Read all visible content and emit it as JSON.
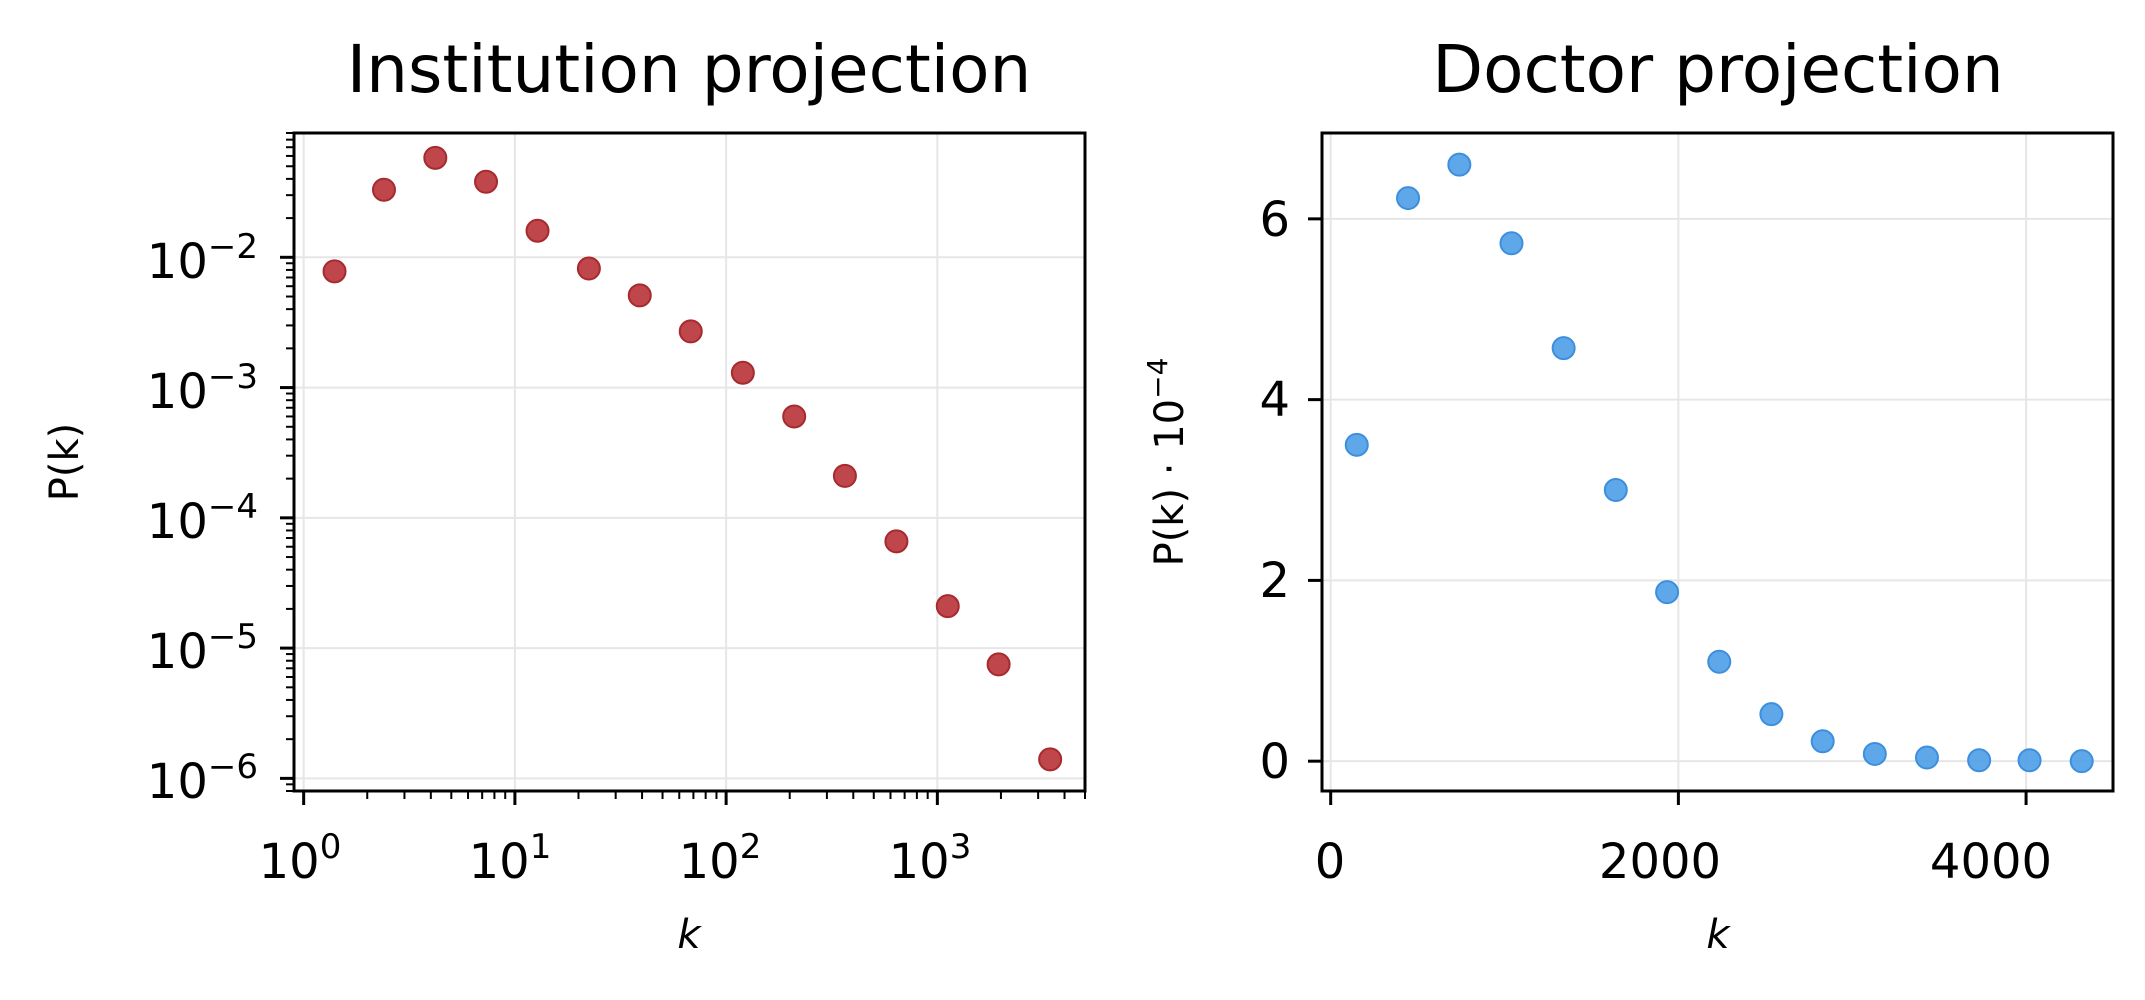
{
  "chart_data": [
    {
      "type": "scatter",
      "title": "Institution projection",
      "xlabel": "k",
      "ylabel": "P(k)",
      "xscale": "log",
      "yscale": "log",
      "xlim": [
        0.9,
        5000
      ],
      "ylim": [
        8e-07,
        0.09
      ],
      "grid": true,
      "color": "#b83236",
      "x_tick_labels": [
        {
          "base": "10",
          "exp": "0"
        },
        {
          "base": "10",
          "exp": "1"
        },
        {
          "base": "10",
          "exp": "2"
        },
        {
          "base": "10",
          "exp": "3"
        }
      ],
      "y_tick_labels": [
        {
          "base": "10",
          "exp": "−2"
        },
        {
          "base": "10",
          "exp": "−3"
        },
        {
          "base": "10",
          "exp": "−4"
        },
        {
          "base": "10",
          "exp": "−5"
        },
        {
          "base": "10",
          "exp": "−6"
        }
      ],
      "points": [
        {
          "x": 1.4,
          "y": 0.0078
        },
        {
          "x": 2.4,
          "y": 0.033
        },
        {
          "x": 4.2,
          "y": 0.058
        },
        {
          "x": 7.3,
          "y": 0.038
        },
        {
          "x": 12.8,
          "y": 0.016
        },
        {
          "x": 22.4,
          "y": 0.0082
        },
        {
          "x": 39,
          "y": 0.0051
        },
        {
          "x": 68,
          "y": 0.0027
        },
        {
          "x": 120,
          "y": 0.0013
        },
        {
          "x": 210,
          "y": 0.0006
        },
        {
          "x": 365,
          "y": 0.00021
        },
        {
          "x": 640,
          "y": 6.6e-05
        },
        {
          "x": 1120,
          "y": 2.1e-05
        },
        {
          "x": 1950,
          "y": 7.5e-06
        },
        {
          "x": 3420,
          "y": 1.4e-06
        }
      ]
    },
    {
      "type": "scatter",
      "title": "Doctor projection",
      "xlabel": "k",
      "ylabel": "P(k) · 10",
      "ylabel_exp": "−4",
      "xlim": [
        -50,
        4500
      ],
      "ylim": [
        -0.33,
        6.95
      ],
      "grid": true,
      "color": "#4d9ee8",
      "x_tick_labels": [
        "0",
        "2000",
        "4000"
      ],
      "y_tick_labels": [
        "0",
        "2",
        "4",
        "6"
      ],
      "points": [
        {
          "x": 150,
          "y": 3.5
        },
        {
          "x": 445,
          "y": 6.23
        },
        {
          "x": 740,
          "y": 6.6
        },
        {
          "x": 1040,
          "y": 5.73
        },
        {
          "x": 1340,
          "y": 4.57
        },
        {
          "x": 1640,
          "y": 3.0
        },
        {
          "x": 1935,
          "y": 1.87
        },
        {
          "x": 2235,
          "y": 1.1
        },
        {
          "x": 2535,
          "y": 0.52
        },
        {
          "x": 2830,
          "y": 0.22
        },
        {
          "x": 3130,
          "y": 0.08
        },
        {
          "x": 3430,
          "y": 0.04
        },
        {
          "x": 3730,
          "y": 0.01
        },
        {
          "x": 4020,
          "y": 0.01
        },
        {
          "x": 4320,
          "y": 0.0
        }
      ]
    }
  ]
}
